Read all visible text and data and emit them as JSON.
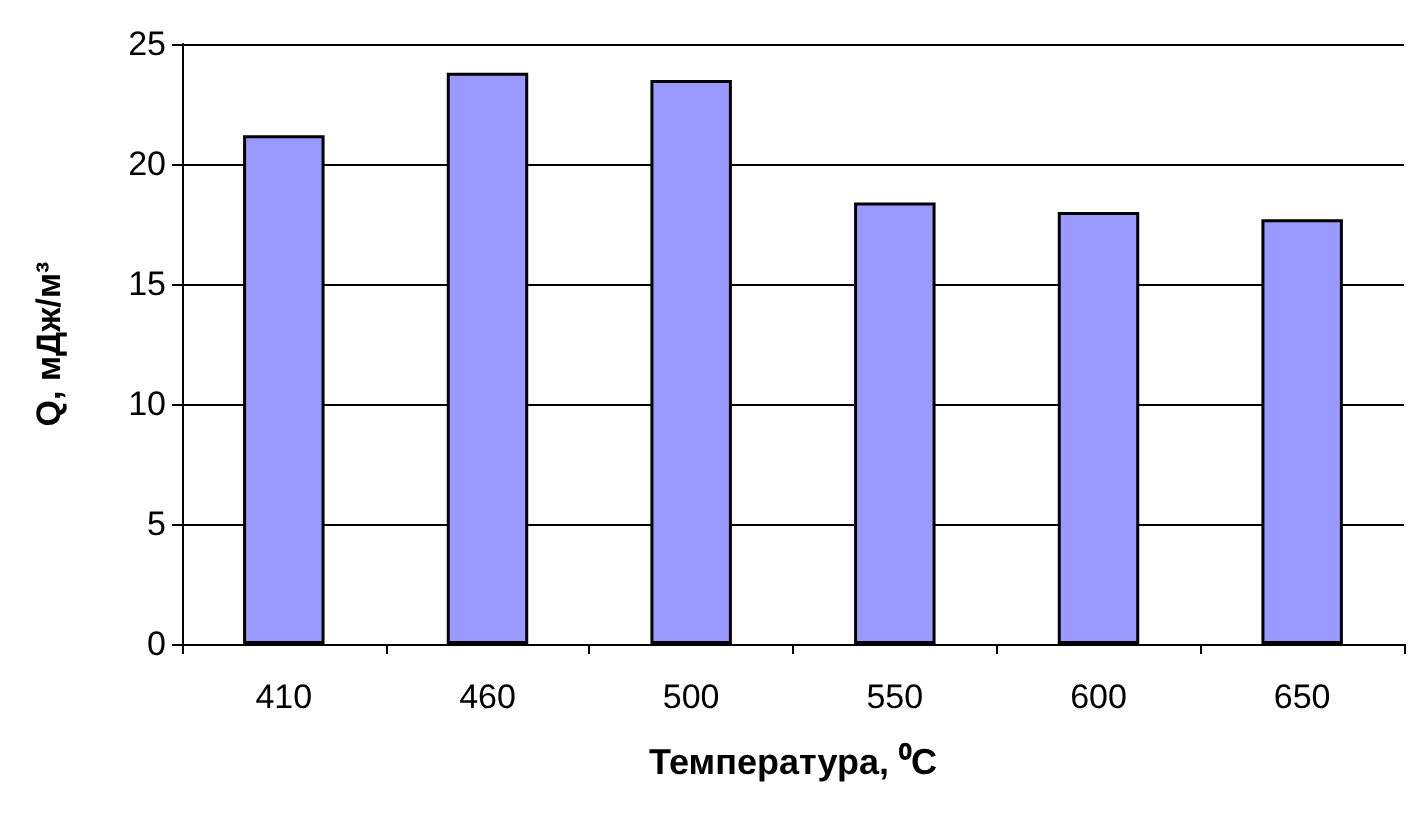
{
  "chart_data": {
    "type": "bar",
    "xlabel": "Температура, ⁰C",
    "ylabel": "Q, мДж/м³",
    "categories": [
      "410",
      "460",
      "500",
      "550",
      "600",
      "650"
    ],
    "values": [
      21.2,
      23.8,
      23.5,
      18.4,
      18.0,
      17.7
    ],
    "color": "#9999ff",
    "ylim": [
      0,
      25
    ],
    "yticks": [
      0,
      5,
      10,
      15,
      20,
      25
    ],
    "grid": "y"
  }
}
